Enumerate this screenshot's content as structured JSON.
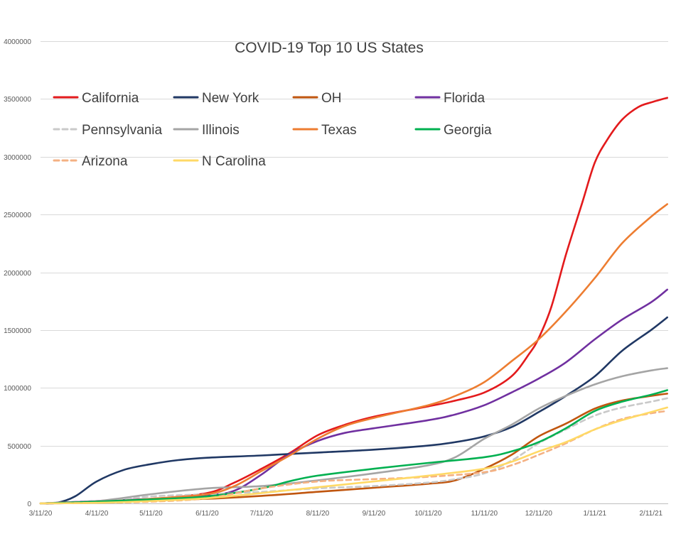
{
  "chart_data": {
    "type": "line",
    "title": "COVID-19 Top 10 US States",
    "xlabel": "",
    "ylabel": "",
    "ylim": [
      0,
      4000000
    ],
    "yticks": [
      0,
      500000,
      1000000,
      1500000,
      2000000,
      2500000,
      3000000,
      3500000,
      4000000
    ],
    "ytick_labels": [
      "0",
      "500000",
      "1000000",
      "1500000",
      "2000000",
      "2500000",
      "3000000",
      "3500000",
      "4000000"
    ],
    "xlim": [
      "2020-03-11",
      "2021-02-20"
    ],
    "xtick_labels": [
      "3/11/20",
      "4/11/20",
      "5/11/20",
      "6/11/20",
      "7/11/20",
      "8/11/20",
      "9/11/20",
      "10/11/20",
      "11/11/20",
      "12/11/20",
      "1/11/21",
      "2/11/21"
    ],
    "xticks": [
      "2020-03-11",
      "2020-04-11",
      "2020-05-11",
      "2020-06-11",
      "2020-07-11",
      "2020-08-11",
      "2020-09-11",
      "2020-10-11",
      "2020-11-11",
      "2020-12-11",
      "2021-01-11",
      "2021-02-11"
    ],
    "grid": "horizontal",
    "legend_position": "top",
    "series": [
      {
        "name": "California",
        "color": "#e31a1c",
        "dash": false,
        "points": [
          [
            "2020-03-11",
            0
          ],
          [
            "2020-04-11",
            10000
          ],
          [
            "2020-05-11",
            35000
          ],
          [
            "2020-06-11",
            90000
          ],
          [
            "2020-06-26",
            180000
          ],
          [
            "2020-07-11",
            300000
          ],
          [
            "2020-07-26",
            430000
          ],
          [
            "2020-08-11",
            590000
          ],
          [
            "2020-08-26",
            680000
          ],
          [
            "2020-09-11",
            750000
          ],
          [
            "2020-10-11",
            840000
          ],
          [
            "2020-10-26",
            890000
          ],
          [
            "2020-11-11",
            960000
          ],
          [
            "2020-11-26",
            1100000
          ],
          [
            "2020-12-06",
            1300000
          ],
          [
            "2020-12-11",
            1430000
          ],
          [
            "2020-12-18",
            1700000
          ],
          [
            "2020-12-26",
            2150000
          ],
          [
            "2021-01-04",
            2600000
          ],
          [
            "2021-01-11",
            2950000
          ],
          [
            "2021-01-18",
            3150000
          ],
          [
            "2021-01-26",
            3320000
          ],
          [
            "2021-02-04",
            3430000
          ],
          [
            "2021-02-11",
            3470000
          ],
          [
            "2021-02-20",
            3510000
          ]
        ]
      },
      {
        "name": "New York",
        "color": "#203864",
        "dash": false,
        "points": [
          [
            "2020-03-11",
            0
          ],
          [
            "2020-03-20",
            5000
          ],
          [
            "2020-03-30",
            60000
          ],
          [
            "2020-04-11",
            190000
          ],
          [
            "2020-04-26",
            290000
          ],
          [
            "2020-05-11",
            340000
          ],
          [
            "2020-05-26",
            375000
          ],
          [
            "2020-06-11",
            395000
          ],
          [
            "2020-07-11",
            415000
          ],
          [
            "2020-08-11",
            440000
          ],
          [
            "2020-09-11",
            465000
          ],
          [
            "2020-10-11",
            500000
          ],
          [
            "2020-10-26",
            530000
          ],
          [
            "2020-11-11",
            580000
          ],
          [
            "2020-11-26",
            660000
          ],
          [
            "2020-12-11",
            790000
          ],
          [
            "2020-12-26",
            930000
          ],
          [
            "2021-01-11",
            1100000
          ],
          [
            "2021-01-26",
            1320000
          ],
          [
            "2021-02-11",
            1500000
          ],
          [
            "2021-02-20",
            1610000
          ]
        ]
      },
      {
        "name": "OH",
        "color": "#c0560f",
        "dash": false,
        "points": [
          [
            "2020-03-11",
            0
          ],
          [
            "2020-04-11",
            6000
          ],
          [
            "2020-05-11",
            25000
          ],
          [
            "2020-06-11",
            40000
          ],
          [
            "2020-07-11",
            65000
          ],
          [
            "2020-08-11",
            100000
          ],
          [
            "2020-09-11",
            135000
          ],
          [
            "2020-10-11",
            170000
          ],
          [
            "2020-10-26",
            200000
          ],
          [
            "2020-11-11",
            300000
          ],
          [
            "2020-11-26",
            420000
          ],
          [
            "2020-12-11",
            580000
          ],
          [
            "2020-12-26",
            690000
          ],
          [
            "2021-01-11",
            820000
          ],
          [
            "2021-01-26",
            890000
          ],
          [
            "2021-02-11",
            930000
          ],
          [
            "2021-02-20",
            950000
          ]
        ]
      },
      {
        "name": "Florida",
        "color": "#7030a0",
        "dash": false,
        "points": [
          [
            "2020-03-11",
            0
          ],
          [
            "2020-04-11",
            20000
          ],
          [
            "2020-05-11",
            40000
          ],
          [
            "2020-06-11",
            70000
          ],
          [
            "2020-06-26",
            110000
          ],
          [
            "2020-07-11",
            250000
          ],
          [
            "2020-07-26",
            420000
          ],
          [
            "2020-08-11",
            540000
          ],
          [
            "2020-08-26",
            610000
          ],
          [
            "2020-09-11",
            650000
          ],
          [
            "2020-10-11",
            720000
          ],
          [
            "2020-10-26",
            770000
          ],
          [
            "2020-11-11",
            850000
          ],
          [
            "2020-11-26",
            960000
          ],
          [
            "2020-12-11",
            1080000
          ],
          [
            "2020-12-26",
            1220000
          ],
          [
            "2021-01-11",
            1420000
          ],
          [
            "2021-01-26",
            1590000
          ],
          [
            "2021-02-11",
            1740000
          ],
          [
            "2021-02-20",
            1850000
          ]
        ]
      },
      {
        "name": "Pennsylvania",
        "color": "#c9c9c9",
        "dash": true,
        "points": [
          [
            "2020-03-11",
            0
          ],
          [
            "2020-04-11",
            20000
          ],
          [
            "2020-05-11",
            60000
          ],
          [
            "2020-06-11",
            80000
          ],
          [
            "2020-07-11",
            100000
          ],
          [
            "2020-08-11",
            130000
          ],
          [
            "2020-09-11",
            150000
          ],
          [
            "2020-10-11",
            180000
          ],
          [
            "2020-10-26",
            210000
          ],
          [
            "2020-11-11",
            260000
          ],
          [
            "2020-11-26",
            370000
          ],
          [
            "2020-12-11",
            520000
          ],
          [
            "2020-12-26",
            640000
          ],
          [
            "2021-01-11",
            760000
          ],
          [
            "2021-01-26",
            830000
          ],
          [
            "2021-02-11",
            880000
          ],
          [
            "2021-02-20",
            910000
          ]
        ]
      },
      {
        "name": "Illinois",
        "color": "#a5a5a5",
        "dash": false,
        "points": [
          [
            "2020-03-11",
            0
          ],
          [
            "2020-04-11",
            20000
          ],
          [
            "2020-05-11",
            80000
          ],
          [
            "2020-06-11",
            130000
          ],
          [
            "2020-07-11",
            150000
          ],
          [
            "2020-08-11",
            200000
          ],
          [
            "2020-09-11",
            260000
          ],
          [
            "2020-10-11",
            330000
          ],
          [
            "2020-10-26",
            400000
          ],
          [
            "2020-11-11",
            560000
          ],
          [
            "2020-11-26",
            680000
          ],
          [
            "2020-12-11",
            820000
          ],
          [
            "2020-12-26",
            930000
          ],
          [
            "2021-01-11",
            1030000
          ],
          [
            "2021-01-26",
            1100000
          ],
          [
            "2021-02-11",
            1150000
          ],
          [
            "2021-02-20",
            1170000
          ]
        ]
      },
      {
        "name": "Texas",
        "color": "#ed7d31",
        "dash": false,
        "points": [
          [
            "2020-03-11",
            0
          ],
          [
            "2020-04-11",
            15000
          ],
          [
            "2020-05-11",
            40000
          ],
          [
            "2020-06-11",
            80000
          ],
          [
            "2020-06-26",
            150000
          ],
          [
            "2020-07-11",
            280000
          ],
          [
            "2020-07-26",
            410000
          ],
          [
            "2020-08-11",
            560000
          ],
          [
            "2020-08-26",
            670000
          ],
          [
            "2020-09-11",
            740000
          ],
          [
            "2020-10-11",
            850000
          ],
          [
            "2020-10-26",
            930000
          ],
          [
            "2020-11-11",
            1050000
          ],
          [
            "2020-11-26",
            1230000
          ],
          [
            "2020-12-11",
            1420000
          ],
          [
            "2020-12-26",
            1660000
          ],
          [
            "2021-01-11",
            1950000
          ],
          [
            "2021-01-26",
            2250000
          ],
          [
            "2021-02-11",
            2480000
          ],
          [
            "2021-02-20",
            2590000
          ]
        ]
      },
      {
        "name": "Georgia",
        "color": "#00b050",
        "dash": false,
        "points": [
          [
            "2020-03-11",
            0
          ],
          [
            "2020-04-11",
            15000
          ],
          [
            "2020-05-11",
            35000
          ],
          [
            "2020-06-11",
            60000
          ],
          [
            "2020-07-11",
            130000
          ],
          [
            "2020-07-26",
            190000
          ],
          [
            "2020-08-11",
            240000
          ],
          [
            "2020-09-11",
            300000
          ],
          [
            "2020-10-11",
            350000
          ],
          [
            "2020-11-11",
            400000
          ],
          [
            "2020-11-26",
            450000
          ],
          [
            "2020-12-11",
            530000
          ],
          [
            "2020-12-26",
            650000
          ],
          [
            "2021-01-11",
            800000
          ],
          [
            "2021-01-26",
            880000
          ],
          [
            "2021-02-11",
            940000
          ],
          [
            "2021-02-20",
            980000
          ]
        ]
      },
      {
        "name": "Arizona",
        "color": "#f4b183",
        "dash": true,
        "points": [
          [
            "2020-03-11",
            0
          ],
          [
            "2020-04-11",
            5000
          ],
          [
            "2020-05-11",
            15000
          ],
          [
            "2020-06-11",
            45000
          ],
          [
            "2020-07-11",
            130000
          ],
          [
            "2020-08-11",
            190000
          ],
          [
            "2020-09-11",
            210000
          ],
          [
            "2020-10-11",
            230000
          ],
          [
            "2020-11-11",
            270000
          ],
          [
            "2020-11-26",
            330000
          ],
          [
            "2020-12-11",
            420000
          ],
          [
            "2020-12-26",
            520000
          ],
          [
            "2021-01-11",
            640000
          ],
          [
            "2021-01-26",
            730000
          ],
          [
            "2021-02-11",
            780000
          ],
          [
            "2021-02-20",
            800000
          ]
        ]
      },
      {
        "name": "N Carolina",
        "color": "#ffd966",
        "dash": false,
        "points": [
          [
            "2020-03-11",
            0
          ],
          [
            "2020-04-11",
            5000
          ],
          [
            "2020-05-11",
            20000
          ],
          [
            "2020-06-11",
            45000
          ],
          [
            "2020-07-11",
            90000
          ],
          [
            "2020-08-11",
            140000
          ],
          [
            "2020-09-11",
            190000
          ],
          [
            "2020-10-11",
            240000
          ],
          [
            "2020-11-11",
            300000
          ],
          [
            "2020-11-26",
            360000
          ],
          [
            "2020-12-11",
            450000
          ],
          [
            "2020-12-26",
            530000
          ],
          [
            "2021-01-11",
            640000
          ],
          [
            "2021-01-26",
            720000
          ],
          [
            "2021-02-11",
            790000
          ],
          [
            "2021-02-20",
            830000
          ]
        ]
      }
    ]
  }
}
